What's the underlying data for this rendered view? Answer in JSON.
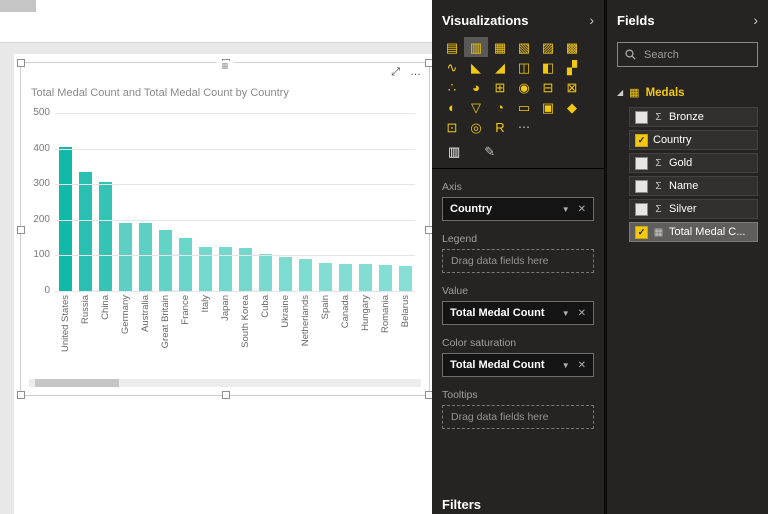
{
  "app": {
    "accent": "#F2C811"
  },
  "canvas": {
    "visual": {
      "title": "Total Medal Count and Total Medal Count by Country",
      "grip_icon": "≡",
      "focus_icon": "⤢",
      "more_icon": "…"
    }
  },
  "chart_data": {
    "type": "bar",
    "title": "Total Medal Count and Total Medal Count by Country",
    "categories": [
      "United States",
      "Russia",
      "China",
      "Germany",
      "Australia",
      "Great Britain",
      "France",
      "Italy",
      "Japan",
      "South Korea",
      "Cuba",
      "Ukraine",
      "Netherlands",
      "Spain",
      "Canada",
      "Hungary",
      "Romania",
      "Belarus"
    ],
    "values": [
      405,
      335,
      305,
      190,
      190,
      170,
      150,
      125,
      125,
      120,
      105,
      95,
      90,
      78,
      77,
      76,
      72,
      70
    ],
    "xlabel": "",
    "ylabel": "",
    "ylim": [
      0,
      500
    ],
    "yticks": [
      0,
      100,
      200,
      300,
      400,
      500
    ],
    "grid": true,
    "legend": "none",
    "bar_color_high": "#12B8A8",
    "bar_color_low": "#86DED4"
  },
  "visualizations_panel": {
    "title": "Visualizations",
    "collapse_icon": "›",
    "active_icon_index": 1,
    "icons": [
      {
        "name": "stacked-bar-chart",
        "glyph": "▤"
      },
      {
        "name": "stacked-column-chart",
        "glyph": "▥"
      },
      {
        "name": "clustered-bar-chart",
        "glyph": "▦"
      },
      {
        "name": "clustered-column-chart",
        "glyph": "▧"
      },
      {
        "name": "100-stacked-bar-chart",
        "glyph": "▨"
      },
      {
        "name": "100-stacked-column-chart",
        "glyph": "▩"
      },
      {
        "name": "line-chart",
        "glyph": "∿"
      },
      {
        "name": "area-chart",
        "glyph": "◣"
      },
      {
        "name": "stacked-area-chart",
        "glyph": "◢"
      },
      {
        "name": "line-and-stacked-column-chart",
        "glyph": "◫"
      },
      {
        "name": "line-and-clustered-column-chart",
        "glyph": "◧"
      },
      {
        "name": "waterfall-chart",
        "glyph": "▞"
      },
      {
        "name": "scatter-chart",
        "glyph": "∴"
      },
      {
        "name": "pie-chart",
        "glyph": "◕"
      },
      {
        "name": "treemap",
        "glyph": "⊞"
      },
      {
        "name": "map",
        "glyph": "◉"
      },
      {
        "name": "table",
        "glyph": "⊟"
      },
      {
        "name": "matrix",
        "glyph": "⊠"
      },
      {
        "name": "filled-map",
        "glyph": "◐"
      },
      {
        "name": "funnel-chart",
        "glyph": "▽"
      },
      {
        "name": "gauge-chart",
        "glyph": "◔"
      },
      {
        "name": "card",
        "glyph": "▭"
      },
      {
        "name": "multi-row-card",
        "glyph": "▣"
      },
      {
        "name": "kpi",
        "glyph": "◆"
      },
      {
        "name": "slicer",
        "glyph": "⊡"
      },
      {
        "name": "donut-chart",
        "glyph": "◎"
      },
      {
        "name": "r-script-visual",
        "glyph": "R"
      }
    ],
    "more_icon": "⋯",
    "tabs": [
      {
        "name": "fields-tab",
        "glyph": "▥",
        "active": true
      },
      {
        "name": "format-tab",
        "glyph": "✎",
        "active": false
      }
    ],
    "wells": [
      {
        "label": "Axis",
        "type": "field",
        "value": "Country"
      },
      {
        "label": "Legend",
        "type": "empty",
        "placeholder": "Drag data fields here"
      },
      {
        "label": "Value",
        "type": "field",
        "value": "Total Medal Count"
      },
      {
        "label": "Color saturation",
        "type": "field",
        "value": "Total Medal Count"
      },
      {
        "label": "Tooltips",
        "type": "empty",
        "placeholder": "Drag data fields here"
      }
    ],
    "field_caret_icon": "▼",
    "field_remove_icon": "✕",
    "filters_label": "Filters"
  },
  "fields_panel": {
    "title": "Fields",
    "collapse_icon": "›",
    "search_placeholder": "Search",
    "table": {
      "name": "Medals",
      "expand_icon": "◢",
      "table_icon": "▦"
    },
    "fields": [
      {
        "name": "Bronze",
        "checked": false,
        "icon": "Σ",
        "selected": false
      },
      {
        "name": "Country",
        "checked": true,
        "icon": "",
        "selected": false
      },
      {
        "name": "Gold",
        "checked": false,
        "icon": "Σ",
        "selected": false
      },
      {
        "name": "Name",
        "checked": false,
        "icon": "Σ",
        "selected": false
      },
      {
        "name": "Silver",
        "checked": false,
        "icon": "Σ",
        "selected": false
      },
      {
        "name": "Total Medal C...",
        "checked": true,
        "icon": "▦",
        "selected": true
      }
    ]
  }
}
